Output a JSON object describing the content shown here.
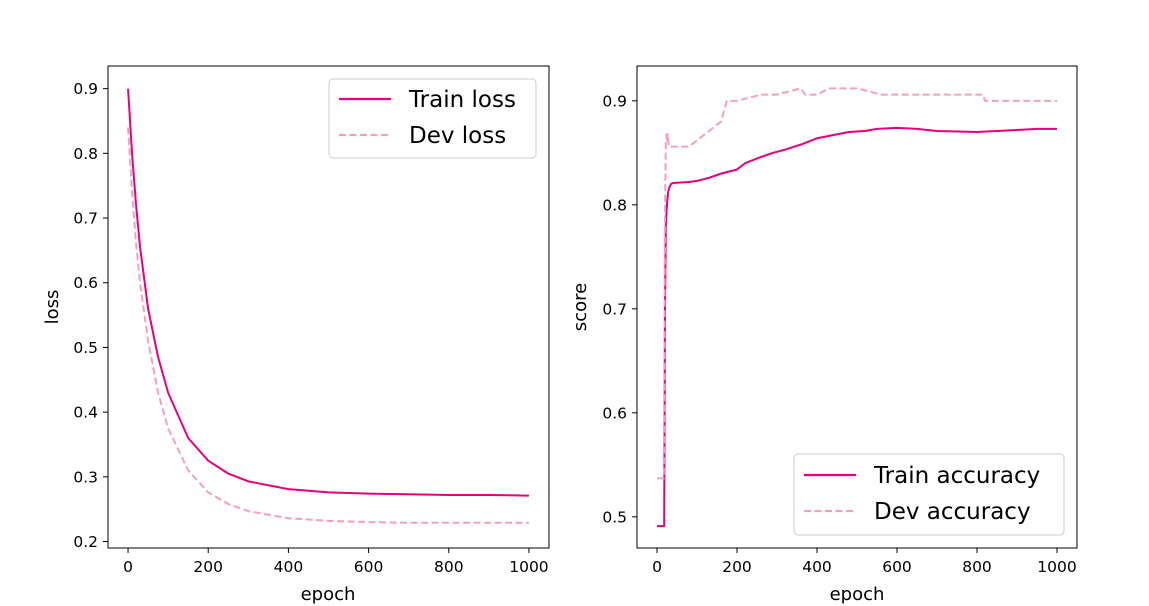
{
  "chart_data": [
    {
      "type": "line",
      "xlabel": "epoch",
      "ylabel": "loss",
      "xlim": [
        -50,
        1050
      ],
      "ylim": [
        0.19,
        0.935
      ],
      "xticks": [
        0,
        200,
        400,
        600,
        800,
        1000
      ],
      "yticks": [
        0.2,
        0.3,
        0.4,
        0.5,
        0.6,
        0.7,
        0.8,
        0.9
      ],
      "legend_position": "top-right",
      "series": [
        {
          "name": "Train loss",
          "color": "#e6007e",
          "style": "solid",
          "x": [
            0,
            10,
            20,
            30,
            50,
            75,
            100,
            150,
            200,
            250,
            300,
            400,
            500,
            600,
            700,
            800,
            900,
            1000
          ],
          "y": [
            0.9,
            0.8,
            0.72,
            0.655,
            0.56,
            0.485,
            0.43,
            0.36,
            0.325,
            0.305,
            0.293,
            0.281,
            0.276,
            0.274,
            0.273,
            0.272,
            0.272,
            0.271
          ]
        },
        {
          "name": "Dev loss",
          "color": "#f4a0bd",
          "style": "dashed",
          "x": [
            0,
            10,
            20,
            30,
            50,
            75,
            100,
            150,
            200,
            250,
            300,
            400,
            500,
            600,
            700,
            800,
            900,
            1000
          ],
          "y": [
            0.84,
            0.74,
            0.66,
            0.6,
            0.51,
            0.43,
            0.375,
            0.31,
            0.276,
            0.258,
            0.247,
            0.236,
            0.232,
            0.23,
            0.229,
            0.229,
            0.229,
            0.229
          ]
        }
      ]
    },
    {
      "type": "line",
      "xlabel": "epoch",
      "ylabel": "score",
      "xlim": [
        -50,
        1050
      ],
      "ylim": [
        0.47,
        0.9335
      ],
      "xticks": [
        0,
        200,
        400,
        600,
        800,
        1000
      ],
      "yticks": [
        0.5,
        0.6,
        0.7,
        0.8,
        0.9
      ],
      "legend_position": "bottom-right",
      "series": [
        {
          "name": "Train accuracy",
          "color": "#e6007e",
          "style": "solid",
          "x": [
            0,
            18,
            19,
            20,
            22,
            24,
            26,
            28,
            30,
            35,
            40,
            80,
            100,
            130,
            160,
            200,
            220,
            260,
            290,
            320,
            360,
            400,
            440,
            480,
            520,
            550,
            600,
            650,
            700,
            800,
            900,
            950,
            1000
          ],
          "y": [
            0.491,
            0.491,
            0.6,
            0.7,
            0.78,
            0.795,
            0.805,
            0.812,
            0.816,
            0.82,
            0.821,
            0.822,
            0.823,
            0.826,
            0.83,
            0.834,
            0.84,
            0.846,
            0.85,
            0.853,
            0.858,
            0.864,
            0.867,
            0.87,
            0.871,
            0.873,
            0.874,
            0.873,
            0.871,
            0.87,
            0.872,
            0.873,
            0.873
          ]
        },
        {
          "name": "Dev accuracy",
          "color": "#f4a0bd",
          "style": "dashed",
          "x": [
            0,
            17,
            18,
            19,
            20,
            22,
            24,
            25,
            27,
            29,
            30,
            40,
            60,
            80,
            100,
            120,
            140,
            160,
            175,
            200,
            260,
            300,
            360,
            370,
            400,
            430,
            500,
            560,
            650,
            815,
            820,
            900,
            1000
          ],
          "y": [
            0.537,
            0.537,
            0.6,
            0.7,
            0.8,
            0.86,
            0.868,
            0.862,
            0.868,
            0.857,
            0.856,
            0.856,
            0.856,
            0.856,
            0.862,
            0.868,
            0.874,
            0.88,
            0.9,
            0.9,
            0.906,
            0.906,
            0.912,
            0.906,
            0.906,
            0.912,
            0.912,
            0.906,
            0.906,
            0.906,
            0.9,
            0.9,
            0.9
          ]
        }
      ]
    }
  ]
}
